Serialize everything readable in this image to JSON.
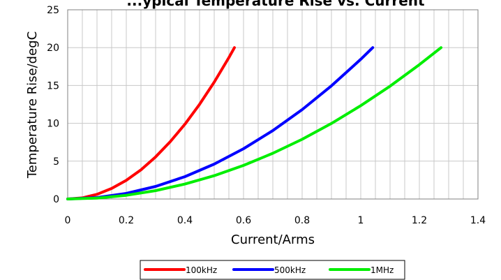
{
  "chart_data": {
    "type": "line",
    "title": "...ypical Temperature Rise vs. Current",
    "xlabel": "Current/Arms",
    "ylabel": "Temperature Rise/degC",
    "xlim": [
      0,
      1.4
    ],
    "ylim": [
      0,
      25
    ],
    "xticks": [
      "0",
      "0.2",
      "0.4",
      "0.6",
      "0.8",
      "1",
      "1.2",
      "1.4"
    ],
    "yticks": [
      "0",
      "5",
      "10",
      "15",
      "20",
      "25"
    ],
    "grid": true,
    "legend_position": "bottom",
    "series": [
      {
        "name": "100kHz",
        "color": "#ff0000",
        "points": [
          [
            0,
            0
          ],
          [
            0.05,
            0.15
          ],
          [
            0.1,
            0.62
          ],
          [
            0.15,
            1.39
          ],
          [
            0.2,
            2.47
          ],
          [
            0.25,
            3.86
          ],
          [
            0.3,
            5.56
          ],
          [
            0.35,
            7.57
          ],
          [
            0.4,
            9.88
          ],
          [
            0.45,
            12.51
          ],
          [
            0.5,
            15.44
          ],
          [
            0.55,
            18.68
          ],
          [
            0.569,
            20
          ]
        ]
      },
      {
        "name": "500kHz",
        "color": "#0000ff",
        "points": [
          [
            0,
            0
          ],
          [
            0.1,
            0.18
          ],
          [
            0.2,
            0.74
          ],
          [
            0.3,
            1.66
          ],
          [
            0.4,
            2.95
          ],
          [
            0.5,
            4.61
          ],
          [
            0.6,
            6.64
          ],
          [
            0.7,
            9.04
          ],
          [
            0.8,
            11.81
          ],
          [
            0.9,
            14.95
          ],
          [
            1.0,
            18.46
          ],
          [
            1.041,
            20
          ]
        ]
      },
      {
        "name": "1MHz",
        "color": "#00ee00",
        "points": [
          [
            0,
            0
          ],
          [
            0.1,
            0.12
          ],
          [
            0.2,
            0.49
          ],
          [
            0.3,
            1.11
          ],
          [
            0.4,
            1.97
          ],
          [
            0.5,
            3.08
          ],
          [
            0.6,
            4.44
          ],
          [
            0.7,
            6.04
          ],
          [
            0.8,
            7.89
          ],
          [
            0.9,
            9.98
          ],
          [
            1.0,
            12.33
          ],
          [
            1.1,
            14.91
          ],
          [
            1.2,
            17.75
          ],
          [
            1.274,
            20
          ]
        ]
      }
    ]
  }
}
